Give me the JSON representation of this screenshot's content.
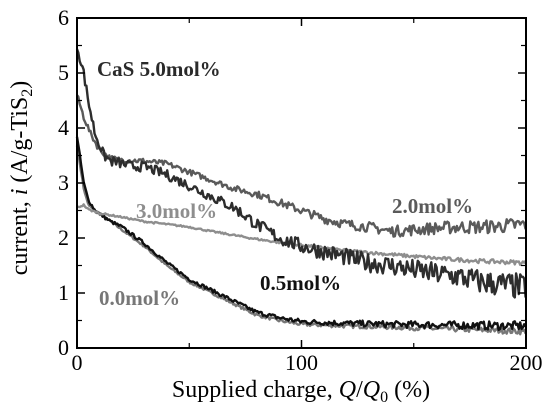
{
  "chart_data": {
    "type": "line",
    "xlabel": "Supplied charge, Q/Q₀ (%)",
    "ylabel": "current, i (A/g-TiS₂)",
    "xlabel_parts": {
      "pre": "Supplied charge, ",
      "q": "Q",
      "slash": "/",
      "q0": "Q",
      "sub0": "0",
      "post": " (%)"
    },
    "ylabel_parts": {
      "pre": "current, ",
      "i": "i",
      "mid": " (A/g-TiS",
      "sub2": "2",
      "post": ")"
    },
    "xlim": [
      0,
      200
    ],
    "ylim": [
      0,
      6
    ],
    "xticks": [
      0,
      100,
      200
    ],
    "yticks": [
      0,
      1,
      2,
      3,
      4,
      5,
      6
    ],
    "grid": false,
    "series": [
      {
        "name": "0.0mol%",
        "color": "#777777",
        "points": [
          [
            0,
            3.7
          ],
          [
            3,
            2.9
          ],
          [
            5,
            2.6
          ],
          [
            8,
            2.5
          ],
          [
            15,
            2.3
          ],
          [
            20,
            2.15
          ],
          [
            25,
            2.0
          ],
          [
            30,
            1.85
          ],
          [
            40,
            1.5
          ],
          [
            50,
            1.2
          ],
          [
            60,
            1.0
          ],
          [
            70,
            0.8
          ],
          [
            80,
            0.6
          ],
          [
            90,
            0.5
          ],
          [
            100,
            0.43
          ],
          [
            120,
            0.4
          ],
          [
            140,
            0.38
          ],
          [
            160,
            0.35
          ],
          [
            180,
            0.33
          ],
          [
            200,
            0.3
          ]
        ]
      },
      {
        "name": "0.5mol%",
        "color": "#111111",
        "points": [
          [
            0,
            3.85
          ],
          [
            3,
            3.0
          ],
          [
            5,
            2.7
          ],
          [
            8,
            2.5
          ],
          [
            15,
            2.3
          ],
          [
            20,
            2.2
          ],
          [
            25,
            2.05
          ],
          [
            30,
            1.9
          ],
          [
            40,
            1.55
          ],
          [
            50,
            1.25
          ],
          [
            60,
            1.05
          ],
          [
            70,
            0.85
          ],
          [
            80,
            0.65
          ],
          [
            90,
            0.55
          ],
          [
            100,
            0.48
          ],
          [
            120,
            0.45
          ],
          [
            140,
            0.43
          ],
          [
            160,
            0.42
          ],
          [
            180,
            0.41
          ],
          [
            200,
            0.4
          ]
        ]
      },
      {
        "name": "2.0mol%",
        "color": "#5a5a5a",
        "points": [
          [
            0,
            4.6
          ],
          [
            3,
            4.2
          ],
          [
            6,
            3.9
          ],
          [
            10,
            3.6
          ],
          [
            15,
            3.45
          ],
          [
            20,
            3.42
          ],
          [
            30,
            3.4
          ],
          [
            40,
            3.35
          ],
          [
            50,
            3.2
          ],
          [
            60,
            3.05
          ],
          [
            70,
            2.9
          ],
          [
            80,
            2.8
          ],
          [
            90,
            2.65
          ],
          [
            100,
            2.5
          ],
          [
            110,
            2.35
          ],
          [
            120,
            2.25
          ],
          [
            130,
            2.2
          ],
          [
            140,
            2.12
          ],
          [
            150,
            2.15
          ],
          [
            160,
            2.18
          ],
          [
            170,
            2.2
          ],
          [
            180,
            2.2
          ],
          [
            190,
            2.22
          ],
          [
            200,
            2.25
          ]
        ]
      },
      {
        "name": "3.0mol%",
        "color": "#8e8e8e",
        "points": [
          [
            0,
            2.55
          ],
          [
            3,
            2.6
          ],
          [
            5,
            2.52
          ],
          [
            10,
            2.45
          ],
          [
            20,
            2.38
          ],
          [
            30,
            2.3
          ],
          [
            40,
            2.25
          ],
          [
            50,
            2.2
          ],
          [
            60,
            2.12
          ],
          [
            70,
            2.05
          ],
          [
            80,
            1.98
          ],
          [
            90,
            1.92
          ],
          [
            100,
            1.87
          ],
          [
            120,
            1.77
          ],
          [
            140,
            1.7
          ],
          [
            160,
            1.63
          ],
          [
            180,
            1.58
          ],
          [
            200,
            1.55
          ]
        ]
      },
      {
        "name": "CaS 5.0mol%",
        "color": "#2d2d2d",
        "points": [
          [
            0,
            5.5
          ],
          [
            3,
            5.0
          ],
          [
            5,
            4.5
          ],
          [
            8,
            3.9
          ],
          [
            12,
            3.5
          ],
          [
            15,
            3.4
          ],
          [
            20,
            3.35
          ],
          [
            25,
            3.3
          ],
          [
            30,
            3.3
          ],
          [
            40,
            3.15
          ],
          [
            50,
            2.95
          ],
          [
            60,
            2.75
          ],
          [
            70,
            2.55
          ],
          [
            75,
            2.4
          ],
          [
            80,
            2.25
          ],
          [
            90,
            2.0
          ],
          [
            100,
            1.85
          ],
          [
            110,
            1.75
          ],
          [
            120,
            1.65
          ],
          [
            130,
            1.55
          ],
          [
            140,
            1.5
          ],
          [
            150,
            1.42
          ],
          [
            160,
            1.35
          ],
          [
            170,
            1.3
          ],
          [
            180,
            1.2
          ],
          [
            190,
            1.15
          ],
          [
            200,
            1.1
          ]
        ]
      }
    ],
    "labels": [
      {
        "text": "CaS 5.0mol%",
        "series": "CaS 5.0mol%"
      },
      {
        "text": "2.0mol%",
        "series": "2.0mol%"
      },
      {
        "text": "3.0mol%",
        "series": "3.0mol%"
      },
      {
        "text": "0.5mol%",
        "series": "0.5mol%"
      },
      {
        "text": "0.0mol%",
        "series": "0.0mol%"
      }
    ]
  }
}
